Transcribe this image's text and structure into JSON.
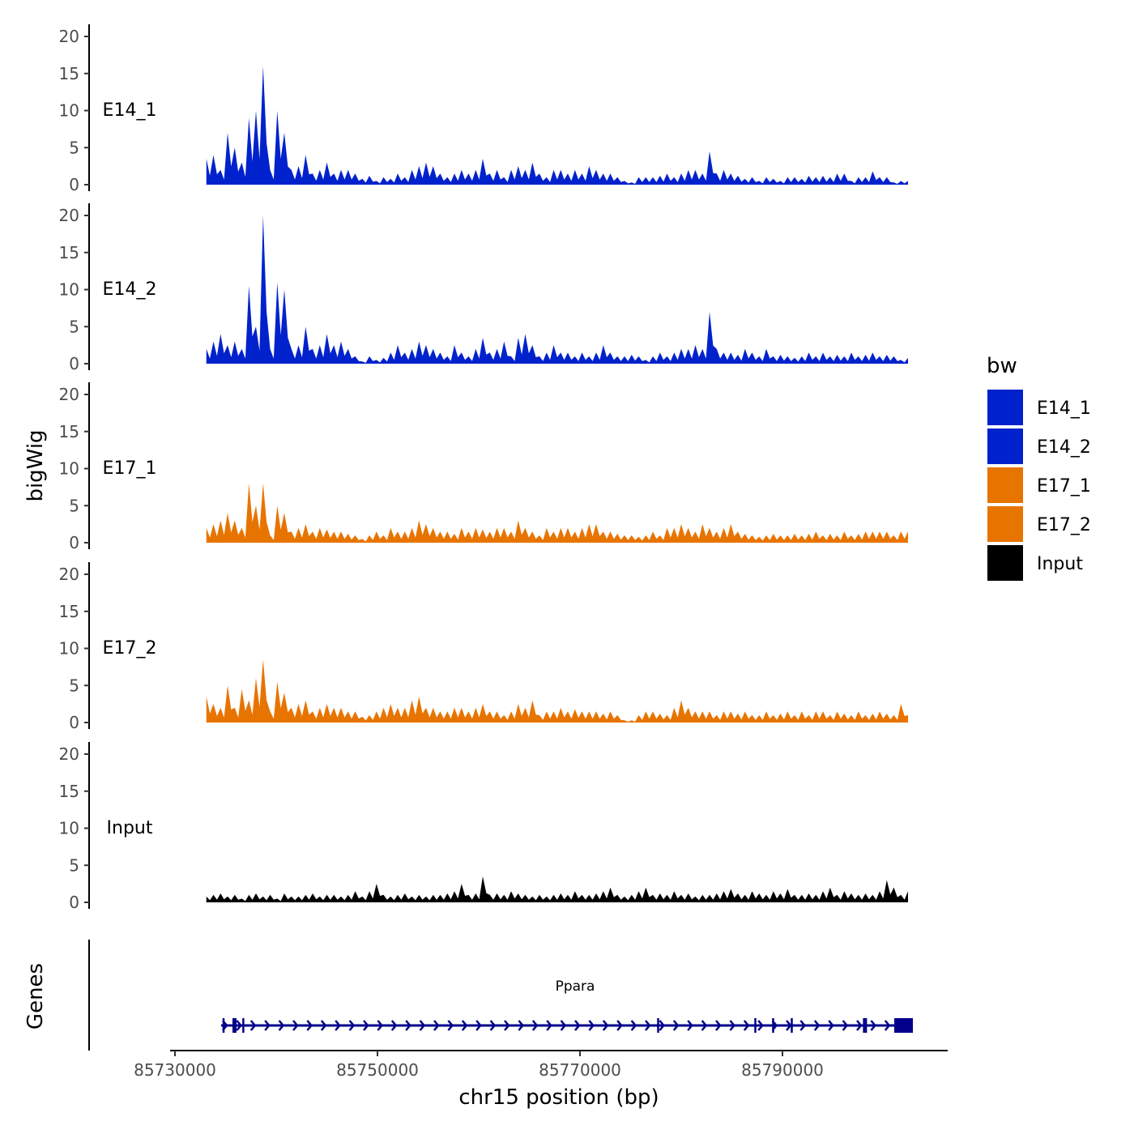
{
  "chart_data": {
    "type": "area",
    "title": "",
    "xlabel": "chr15 position (bp)",
    "ylabel": "bigWig",
    "genes_label": "Genes",
    "xlim": [
      85729800,
      85806000
    ],
    "ylim": [
      0,
      20
    ],
    "x_ticks": [
      85730000,
      85750000,
      85770000,
      85790000
    ],
    "x_tick_labels": [
      "85730000",
      "85750000",
      "85770000",
      "85790000"
    ],
    "y_ticks": [
      0,
      5,
      10,
      15,
      20
    ],
    "y_tick_labels": [
      "0",
      "5",
      "10",
      "15",
      "20"
    ],
    "x_start": 85733100,
    "x_step": 700,
    "series": [
      {
        "name": "E14_1",
        "color": "#0022CC",
        "values": [
          3.5,
          4,
          2,
          7,
          5,
          3,
          9,
          10,
          16,
          2,
          10,
          7,
          2,
          2.5,
          4,
          1.5,
          2,
          3,
          1.5,
          2,
          2,
          1.5,
          0.8,
          1.2,
          0.5,
          1,
          0.8,
          1.5,
          1,
          2,
          2.5,
          3,
          2.5,
          1.5,
          1,
          1.5,
          2,
          1.5,
          2,
          3.5,
          1.5,
          2,
          1,
          2,
          2.5,
          2,
          3,
          1.5,
          1,
          2,
          2,
          1.5,
          2,
          1.5,
          2.5,
          2,
          1.5,
          1.5,
          1,
          0.5,
          0.3,
          1,
          1,
          1,
          1.2,
          1.5,
          1,
          1.5,
          2,
          2,
          1.5,
          4.5,
          1.5,
          2,
          1.5,
          1.2,
          0.8,
          1,
          0.5,
          1,
          0.8,
          0.5,
          1,
          1,
          0.8,
          1.2,
          1,
          1.2,
          1,
          1.5,
          1.5,
          0.5,
          1,
          1,
          1.8,
          1,
          1,
          0.3,
          0.5,
          0.5
        ]
      },
      {
        "name": "E14_2",
        "color": "#0022CC",
        "values": [
          2,
          3,
          4,
          2.5,
          3,
          2,
          10.5,
          5,
          20,
          2,
          11,
          10,
          2,
          2.5,
          5,
          2,
          2.5,
          4,
          2.5,
          3,
          2,
          1,
          0.3,
          1,
          0.5,
          0.8,
          1.5,
          2.5,
          1.5,
          2,
          3,
          2.5,
          2,
          1.5,
          1,
          2.5,
          1.5,
          1,
          2,
          3.5,
          1.5,
          2,
          3,
          1,
          3.5,
          4,
          2.5,
          1,
          1.5,
          2.5,
          1.5,
          1.5,
          1,
          1.5,
          1,
          1.5,
          2.5,
          1.5,
          1,
          1,
          1.2,
          1,
          0.5,
          1,
          1.5,
          1,
          1.5,
          2,
          2,
          2.5,
          2,
          7,
          2,
          1.5,
          1.5,
          1.2,
          2,
          1.5,
          1,
          2,
          1,
          1.2,
          1,
          0.8,
          1,
          1.5,
          1,
          1.5,
          1,
          1.2,
          1,
          1.5,
          1,
          1.2,
          1.5,
          1,
          1.2,
          1,
          0.5,
          0.8
        ]
      },
      {
        "name": "E17_1",
        "color": "#E87400",
        "values": [
          2,
          2.5,
          3,
          4,
          3,
          2,
          8,
          5,
          8,
          1,
          5,
          4,
          1.5,
          2,
          2.5,
          1.5,
          2,
          1.8,
          1.5,
          1.5,
          1.2,
          1,
          0.5,
          1,
          1.5,
          1,
          2,
          1.5,
          1.5,
          2,
          3,
          2.5,
          2,
          1.5,
          1.5,
          1.2,
          2,
          1.5,
          2,
          1.8,
          1.5,
          2,
          2,
          1.5,
          3,
          2,
          1.5,
          1,
          2,
          1.5,
          2,
          2,
          1.5,
          2,
          2.5,
          2.5,
          1.5,
          1.5,
          1.2,
          1,
          1,
          0.8,
          1,
          1.5,
          1,
          2,
          2,
          2.5,
          2,
          1.5,
          2.5,
          2,
          1.5,
          2,
          2.5,
          1.5,
          1.2,
          1,
          0.8,
          1,
          1.2,
          1,
          1,
          1.2,
          1,
          1.2,
          1.5,
          1,
          1.2,
          1,
          1.5,
          1,
          1.2,
          1.5,
          1.5,
          1.5,
          1.5,
          1,
          1.5,
          1.5
        ]
      },
      {
        "name": "E17_2",
        "color": "#E87400",
        "values": [
          3.5,
          2.5,
          2,
          5,
          2,
          4.5,
          3,
          6,
          8.5,
          1.5,
          5.5,
          4,
          2,
          2.5,
          3,
          1.5,
          2,
          2.5,
          2,
          2,
          1.5,
          1.5,
          0.8,
          1,
          1.5,
          2,
          2.5,
          2,
          2,
          3,
          3.5,
          2,
          2,
          1.5,
          1.5,
          2,
          2,
          1.5,
          2,
          2.5,
          1.5,
          1.5,
          1,
          1.5,
          2.5,
          2,
          3,
          1,
          1.5,
          1.5,
          2,
          1.5,
          1.8,
          1.5,
          1.5,
          1.5,
          1.2,
          1.5,
          1,
          0.3,
          0.3,
          1,
          1.5,
          1.5,
          1.2,
          1,
          2,
          3,
          2,
          1.5,
          1.5,
          1.5,
          1,
          1.5,
          1.5,
          1.2,
          1.5,
          1,
          1,
          1.5,
          1,
          1.2,
          1.5,
          1,
          1.5,
          1,
          1.5,
          1.5,
          1,
          1.5,
          1.2,
          1,
          1.5,
          1,
          1.2,
          1.5,
          1.2,
          1,
          2.5,
          1
        ]
      },
      {
        "name": "Input",
        "color": "#000000",
        "values": [
          0.8,
          1,
          1.2,
          0.8,
          1,
          0.5,
          1,
          1.2,
          0.8,
          1,
          0.5,
          1.2,
          0.8,
          0.8,
          1,
          1.2,
          0.8,
          1,
          1,
          0.8,
          1,
          1.5,
          0.8,
          1.5,
          2.5,
          1,
          0.8,
          1,
          1.2,
          0.8,
          1,
          0.8,
          1,
          1,
          1.2,
          1.5,
          2.5,
          1,
          1.2,
          3.5,
          1,
          1.2,
          1,
          1.5,
          1.2,
          1,
          0.8,
          1,
          0.8,
          1,
          1.2,
          1,
          1.5,
          1,
          1,
          1.2,
          1.5,
          2,
          1,
          0.8,
          1,
          1.5,
          2,
          1,
          1.2,
          1,
          1.5,
          1,
          1.2,
          0.8,
          1,
          1,
          1.2,
          1.5,
          1.8,
          1.2,
          1,
          1.5,
          1.2,
          1,
          1.5,
          1.2,
          1.8,
          1,
          1,
          1.2,
          1,
          1.5,
          2,
          1,
          1.5,
          1.2,
          1,
          1.2,
          1,
          1.5,
          3,
          2,
          1,
          1.5
        ]
      }
    ],
    "legend": {
      "title": "bw",
      "position": "right",
      "entries": [
        "E14_1",
        "E14_2",
        "E17_1",
        "E17_2",
        "Input"
      ]
    },
    "genes": [
      {
        "name": "Ppara",
        "start": 85734560,
        "end": 85802880,
        "strand": "+",
        "color": "#00008B",
        "exons": [
          [
            85734700,
            85734900
          ],
          [
            85735680,
            85736080
          ],
          [
            85736650,
            85736800
          ],
          [
            85777620,
            85777760
          ],
          [
            85787220,
            85787340
          ],
          [
            85788980,
            85789100
          ],
          [
            85790820,
            85790940
          ],
          [
            85797950,
            85798350
          ],
          [
            85801040,
            85802880
          ]
        ]
      }
    ]
  }
}
